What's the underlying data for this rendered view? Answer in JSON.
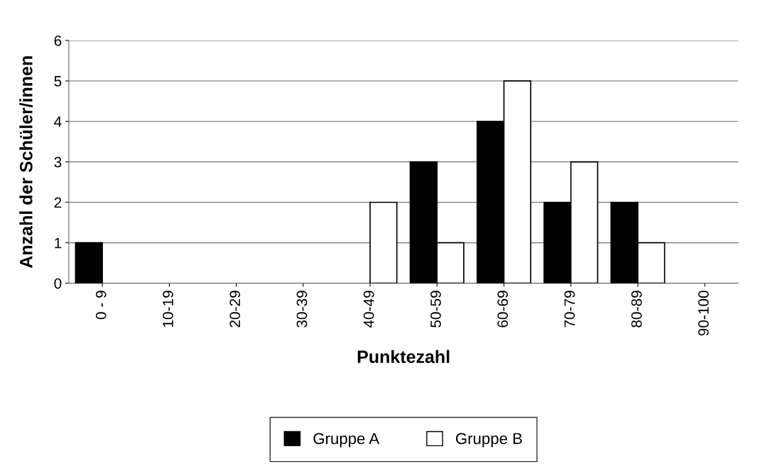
{
  "chart_data": {
    "type": "bar",
    "xlabel": "Punktezahl",
    "ylabel": "Anzahl der Schüler/innen",
    "categories": [
      "0 - 9",
      "10-19",
      "20-29",
      "30-39",
      "40-49",
      "50-59",
      "60-69",
      "70-79",
      "80-89",
      "90-100"
    ],
    "series": [
      {
        "name": "Gruppe A",
        "color": "#000000",
        "values": [
          1,
          0,
          0,
          0,
          0,
          3,
          4,
          2,
          2,
          0
        ]
      },
      {
        "name": "Gruppe B",
        "color": "#ffffff",
        "values": [
          0,
          0,
          0,
          0,
          2,
          1,
          5,
          3,
          1,
          0
        ]
      }
    ],
    "ylim": [
      0,
      6
    ],
    "yticks": [
      0,
      1,
      2,
      3,
      4,
      5,
      6
    ],
    "grid": "y",
    "legend": "bottom"
  }
}
